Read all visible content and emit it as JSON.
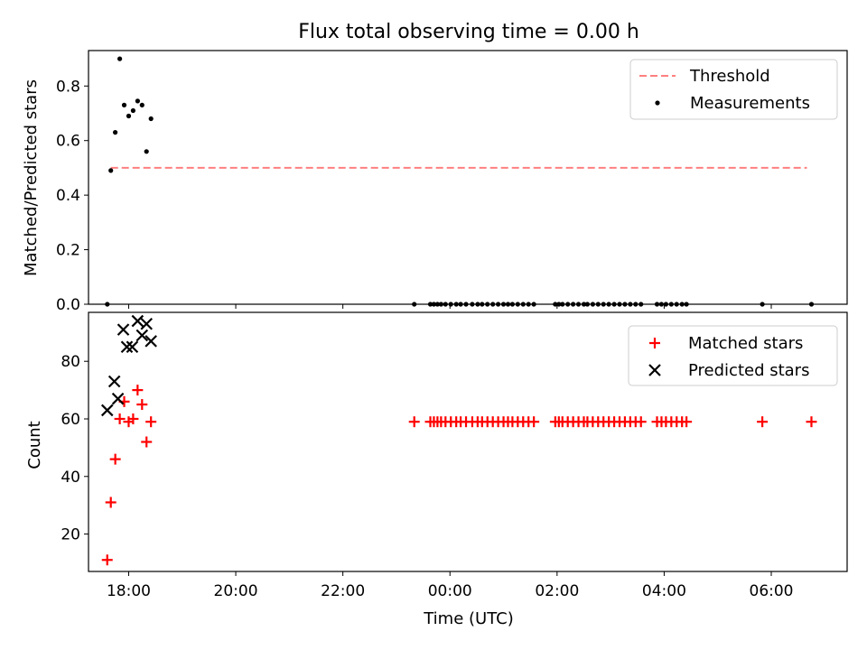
{
  "chart_data": [
    {
      "type": "scatter",
      "title": "Flux total observing time = 0.00 h",
      "ylabel": "Matched/Predicted stars",
      "xlabel": "",
      "ylim": [
        0,
        0.93
      ],
      "xlim": [
        "17:15",
        "07:25"
      ],
      "yticks": [
        "0.0",
        "0.2",
        "0.4",
        "0.6",
        "0.8"
      ],
      "legend_position": "top-right",
      "series": [
        {
          "name": "Threshold",
          "style": "dashed-line",
          "color": "#ff7f7f",
          "x": [
            "17:40",
            "06:40"
          ],
          "y": [
            0.5,
            0.5
          ]
        },
        {
          "name": "Measurements",
          "style": "dot",
          "color": "#000000",
          "x": [
            "17:36",
            "17:40",
            "17:45",
            "17:50",
            "17:55",
            "18:00",
            "18:05",
            "18:10",
            "18:15",
            "18:20",
            "18:25",
            "23:20",
            "23:38",
            "23:42",
            "23:46",
            "23:50",
            "23:55",
            "00:01",
            "00:07",
            "00:12",
            "00:18",
            "00:25",
            "00:31",
            "00:36",
            "00:42",
            "00:48",
            "00:54",
            "01:00",
            "01:05",
            "01:10",
            "01:16",
            "01:22",
            "01:28",
            "01:34",
            "01:58",
            "02:02",
            "02:06",
            "02:12",
            "02:18",
            "02:24",
            "02:30",
            "02:34",
            "02:40",
            "02:46",
            "02:52",
            "02:58",
            "03:04",
            "03:10",
            "03:16",
            "03:22",
            "03:28",
            "03:34",
            "03:52",
            "03:57",
            "04:02",
            "04:08",
            "04:14",
            "04:20",
            "04:25",
            "05:50",
            "06:45"
          ],
          "y": [
            0,
            0.49,
            0.63,
            0.9,
            0.73,
            0.69,
            0.71,
            0.745,
            0.73,
            0.56,
            0.68,
            0,
            0,
            0,
            0,
            0,
            0,
            0,
            0,
            0,
            0,
            0,
            0,
            0,
            0,
            0,
            0,
            0,
            0,
            0,
            0,
            0,
            0,
            0,
            0,
            0,
            0,
            0,
            0,
            0,
            0,
            0,
            0,
            0,
            0,
            0,
            0,
            0,
            0,
            0,
            0,
            0,
            0,
            0,
            0,
            0,
            0,
            0,
            0,
            0,
            0
          ]
        }
      ]
    },
    {
      "type": "scatter",
      "title": "",
      "ylabel": "Count",
      "xlabel": "Time (UTC)",
      "ylim": [
        7,
        97
      ],
      "xlim": [
        "17:15",
        "07:25"
      ],
      "yticks": [
        "20",
        "40",
        "60",
        "80"
      ],
      "xticks": [
        "18:00",
        "20:00",
        "22:00",
        "00:00",
        "02:00",
        "04:00",
        "06:00"
      ],
      "legend_position": "top-right",
      "series": [
        {
          "name": "Matched stars",
          "style": "plus",
          "color": "#ff0000",
          "x": [
            "17:36",
            "17:40",
            "17:45",
            "17:50",
            "17:55",
            "18:00",
            "18:05",
            "18:10",
            "18:15",
            "18:20",
            "18:25",
            "23:20",
            "23:38",
            "23:42",
            "23:46",
            "23:50",
            "23:55",
            "00:01",
            "00:07",
            "00:12",
            "00:18",
            "00:25",
            "00:31",
            "00:36",
            "00:42",
            "00:48",
            "00:54",
            "01:00",
            "01:05",
            "01:10",
            "01:16",
            "01:22",
            "01:28",
            "01:34",
            "01:58",
            "02:02",
            "02:06",
            "02:12",
            "02:18",
            "02:24",
            "02:30",
            "02:34",
            "02:40",
            "02:46",
            "02:52",
            "02:58",
            "03:04",
            "03:10",
            "03:16",
            "03:22",
            "03:28",
            "03:34",
            "03:52",
            "03:57",
            "04:02",
            "04:08",
            "04:14",
            "04:20",
            "04:25",
            "05:50",
            "06:45"
          ],
          "y": [
            11,
            31,
            46,
            60,
            66,
            59,
            60,
            70,
            65,
            52,
            59,
            59,
            59,
            59,
            59,
            59,
            59,
            59,
            59,
            59,
            59,
            59,
            59,
            59,
            59,
            59,
            59,
            59,
            59,
            59,
            59,
            59,
            59,
            59,
            59,
            59,
            59,
            59,
            59,
            59,
            59,
            59,
            59,
            59,
            59,
            59,
            59,
            59,
            59,
            59,
            59,
            59,
            59,
            59,
            59,
            59,
            59,
            59,
            59,
            59,
            59
          ]
        },
        {
          "name": "Predicted stars",
          "style": "x",
          "color": "#000000",
          "x": [
            "17:36",
            "17:44",
            "17:48",
            "17:54",
            "17:58",
            "18:04",
            "18:10",
            "18:15",
            "18:20",
            "18:25"
          ],
          "y": [
            63,
            73,
            67,
            91,
            85,
            85,
            94,
            89,
            93,
            87
          ]
        }
      ]
    }
  ]
}
